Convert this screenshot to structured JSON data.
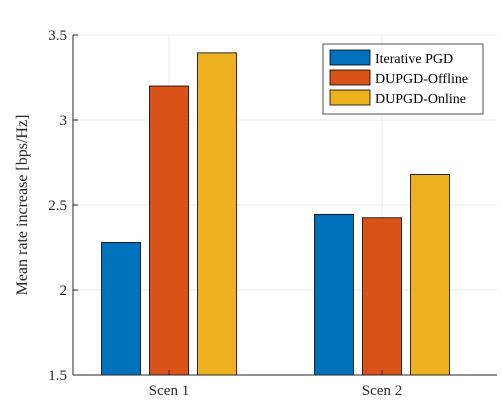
{
  "chart_data": {
    "type": "bar",
    "title": "",
    "xlabel": "",
    "ylabel": "Mean rate increase [bps/Hz]",
    "categories": [
      "Scen 1",
      "Scen 2"
    ],
    "series": [
      {
        "name": "Iterative PGD",
        "values": [
          2.28,
          2.445
        ],
        "color": "#0072BD"
      },
      {
        "name": "DUPGD-Offline",
        "values": [
          3.2,
          2.425
        ],
        "color": "#D95319"
      },
      {
        "name": "DUPGD-Online",
        "values": [
          3.395,
          2.68
        ],
        "color": "#EDB120"
      }
    ],
    "ylim": [
      1.5,
      3.5
    ],
    "yticks": [
      1.5,
      2,
      2.5,
      3,
      3.5
    ],
    "ytick_labels": [
      "1.5",
      "2",
      "2.5",
      "3",
      "3.5"
    ],
    "grid": true,
    "legend_position": "top-right"
  }
}
